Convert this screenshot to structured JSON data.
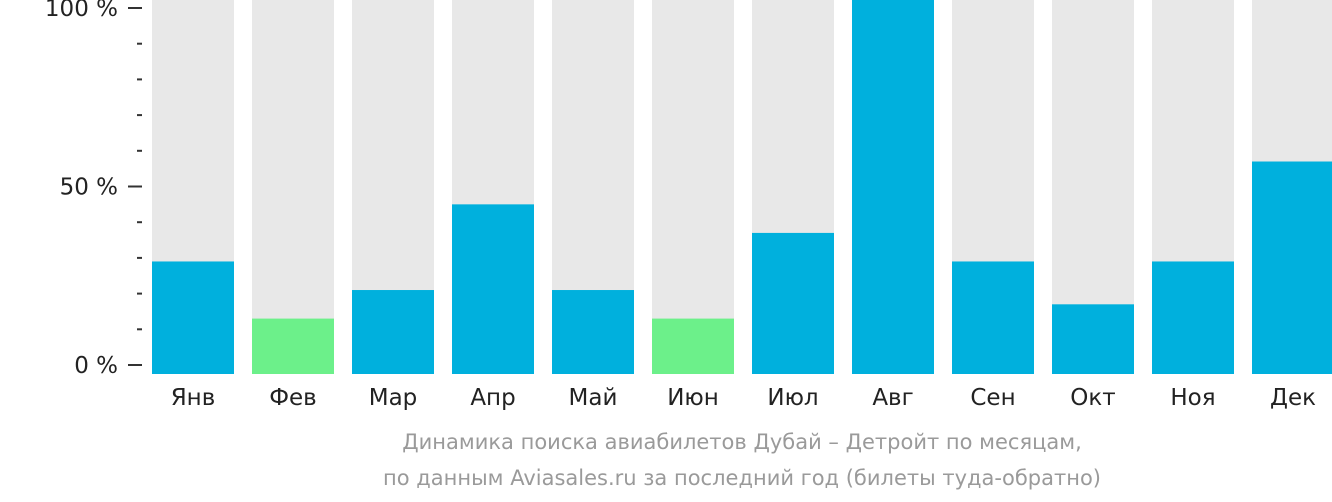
{
  "chart_data": {
    "type": "bar",
    "categories": [
      "Янв",
      "Фев",
      "Мар",
      "Апр",
      "Май",
      "Июн",
      "Июл",
      "Авг",
      "Сен",
      "Окт",
      "Ноя",
      "Дек"
    ],
    "values": [
      29,
      13,
      21,
      45,
      21,
      13,
      37,
      100,
      29,
      17,
      29,
      57
    ],
    "ylim": [
      0,
      100
    ],
    "yticks": [
      {
        "value": 0,
        "label": "0 %"
      },
      {
        "value": 50,
        "label": "50 %"
      },
      {
        "value": 100,
        "label": "100 %"
      }
    ],
    "minor_ticks": [
      10,
      20,
      30,
      40,
      60,
      70,
      80,
      90
    ],
    "highlight_categories": [
      "Фев",
      "Июн"
    ],
    "colors": {
      "bar": "#00b0dd",
      "highlight": "#6cf08a",
      "background_bar": "#e8e8e8",
      "axis": "#333333",
      "caption": "#9a9a9a"
    },
    "caption": {
      "line1": "Динамика поиска авиабилетов Дубай – Детройт по месяцам,",
      "line2": "по данным Aviasales.ru за последний год (билеты туда-обратно)"
    }
  }
}
